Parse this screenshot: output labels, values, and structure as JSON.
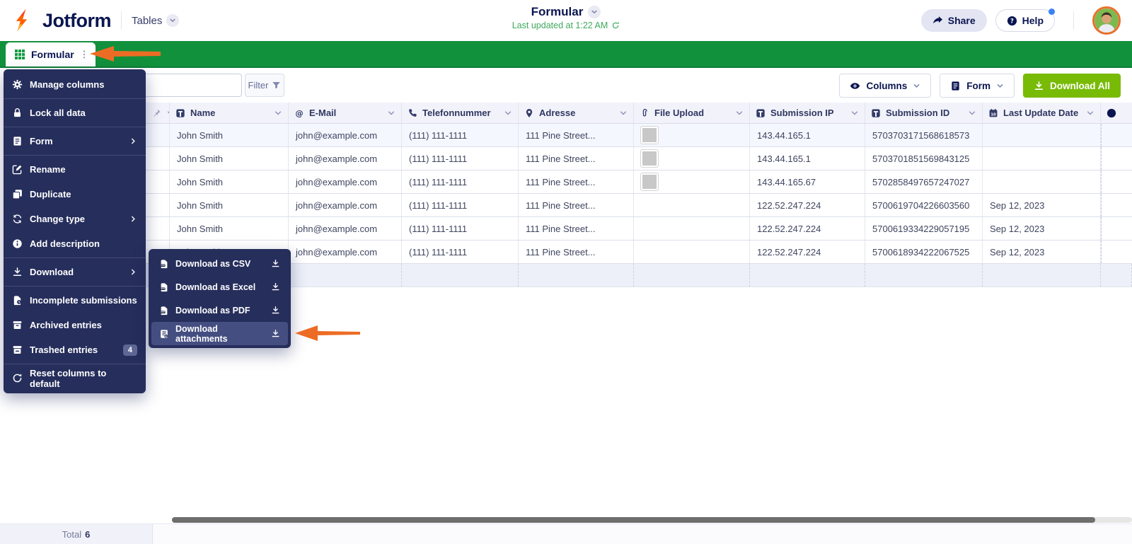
{
  "header": {
    "brand": "Jotform",
    "nav_tables": "Tables",
    "title": "Formular",
    "subtitle": "Last updated at 1:22 AM",
    "share_label": "Share",
    "help_label": "Help"
  },
  "tab": {
    "label": "Formular"
  },
  "toolbar": {
    "search_value": "",
    "filter_label": "Filter",
    "columns_label": "Columns",
    "form_label": "Form",
    "download_all_label": "Download All"
  },
  "menu": {
    "items": [
      {
        "label": "Manage columns",
        "icon": "gear-icon",
        "divider_after": true
      },
      {
        "label": "Lock all data",
        "icon": "lock-icon",
        "divider_after": true
      },
      {
        "label": "Form",
        "icon": "form-icon",
        "has_submenu": true,
        "divider_after": true
      },
      {
        "label": "Rename",
        "icon": "rename-icon"
      },
      {
        "label": "Duplicate",
        "icon": "duplicate-icon"
      },
      {
        "label": "Change type",
        "icon": "change-type-icon",
        "has_submenu": true
      },
      {
        "label": "Add description",
        "icon": "info-icon",
        "divider_after": true
      },
      {
        "label": "Download",
        "icon": "download-icon",
        "has_submenu": true,
        "divider_after": true,
        "open": true
      },
      {
        "label": "Incomplete submissions",
        "icon": "incomplete-icon"
      },
      {
        "label": "Archived entries",
        "icon": "archive-icon"
      },
      {
        "label": "Trashed entries",
        "icon": "trash-icon",
        "badge": "4",
        "divider_after": true
      },
      {
        "label": "Reset columns to default",
        "icon": "reset-icon"
      }
    ]
  },
  "submenu": {
    "items": [
      {
        "label": "Download as CSV",
        "icon": "file-csv-icon",
        "active": false
      },
      {
        "label": "Download as Excel",
        "icon": "file-excel-icon",
        "active": false
      },
      {
        "label": "Download as PDF",
        "icon": "file-pdf-icon",
        "active": false
      },
      {
        "label": "Download attachments",
        "icon": "file-attachment-icon",
        "active": true
      }
    ]
  },
  "table": {
    "columns": [
      {
        "key": "pin",
        "label": "",
        "icon": "pin-icon"
      },
      {
        "key": "name",
        "label": "Name",
        "icon": "text-field-icon"
      },
      {
        "key": "email",
        "label": "E-Mail",
        "icon": "at-icon"
      },
      {
        "key": "phone",
        "label": "Telefonnummer",
        "icon": "phone-icon"
      },
      {
        "key": "address",
        "label": "Adresse",
        "icon": "location-icon"
      },
      {
        "key": "file_upload",
        "label": "File Upload",
        "icon": "paperclip-icon"
      },
      {
        "key": "submission_ip",
        "label": "Submission IP",
        "icon": "text-field-icon"
      },
      {
        "key": "submission_id",
        "label": "Submission ID",
        "icon": "text-field-icon"
      },
      {
        "key": "last_update_date",
        "label": "Last Update Date",
        "icon": "calendar-icon"
      },
      {
        "key": "overflow",
        "label": "",
        "icon": "hidden-column-icon"
      }
    ],
    "rows": [
      {
        "name": "John Smith",
        "email": "john@example.com",
        "phone": "(111) 111-1111",
        "address": "111 Pine Street...",
        "file_upload": "sample-image",
        "submission_ip": "143.44.165.1",
        "submission_id": "5703703171568618573",
        "last_update_date": ""
      },
      {
        "name": "John Smith",
        "email": "john@example.com",
        "phone": "(111) 111-1111",
        "address": "111 Pine Street...",
        "file_upload": "sample-image",
        "submission_ip": "143.44.165.1",
        "submission_id": "5703701851569843125",
        "last_update_date": ""
      },
      {
        "name": "John Smith",
        "email": "john@example.com",
        "phone": "(111) 111-1111",
        "address": "111 Pine Street...",
        "file_upload": "sample-image",
        "submission_ip": "143.44.165.67",
        "submission_id": "5702858497657247027",
        "last_update_date": ""
      },
      {
        "name": "John Smith",
        "email": "john@example.com",
        "phone": "(111) 111-1111",
        "address": "111 Pine Street...",
        "file_upload": "",
        "submission_ip": "122.52.247.224",
        "submission_id": "5700619704226603560",
        "last_update_date": "Sep 12, 2023"
      },
      {
        "name": "John Smith",
        "email": "john@example.com",
        "phone": "(111) 111-1111",
        "address": "111 Pine Street...",
        "file_upload": "",
        "submission_ip": "122.52.247.224",
        "submission_id": "5700619334229057195",
        "last_update_date": "Sep 12, 2023"
      },
      {
        "name": "John Smith",
        "email": "john@example.com",
        "phone": "(111) 111-1111",
        "address": "111 Pine Street...",
        "file_upload": "",
        "submission_ip": "122.52.247.224",
        "submission_id": "5700618934222067525",
        "last_update_date": "Sep 12, 2023"
      }
    ]
  },
  "footer": {
    "total_label": "Total",
    "total_count": "6"
  },
  "colors": {
    "brand_navy": "#0a1551",
    "menu_navy": "#262e5c",
    "green_bar": "#12913c",
    "download_all_green": "#78bb07",
    "subtitle_green": "#3fa95c",
    "annotation_orange": "#ed6c25"
  }
}
